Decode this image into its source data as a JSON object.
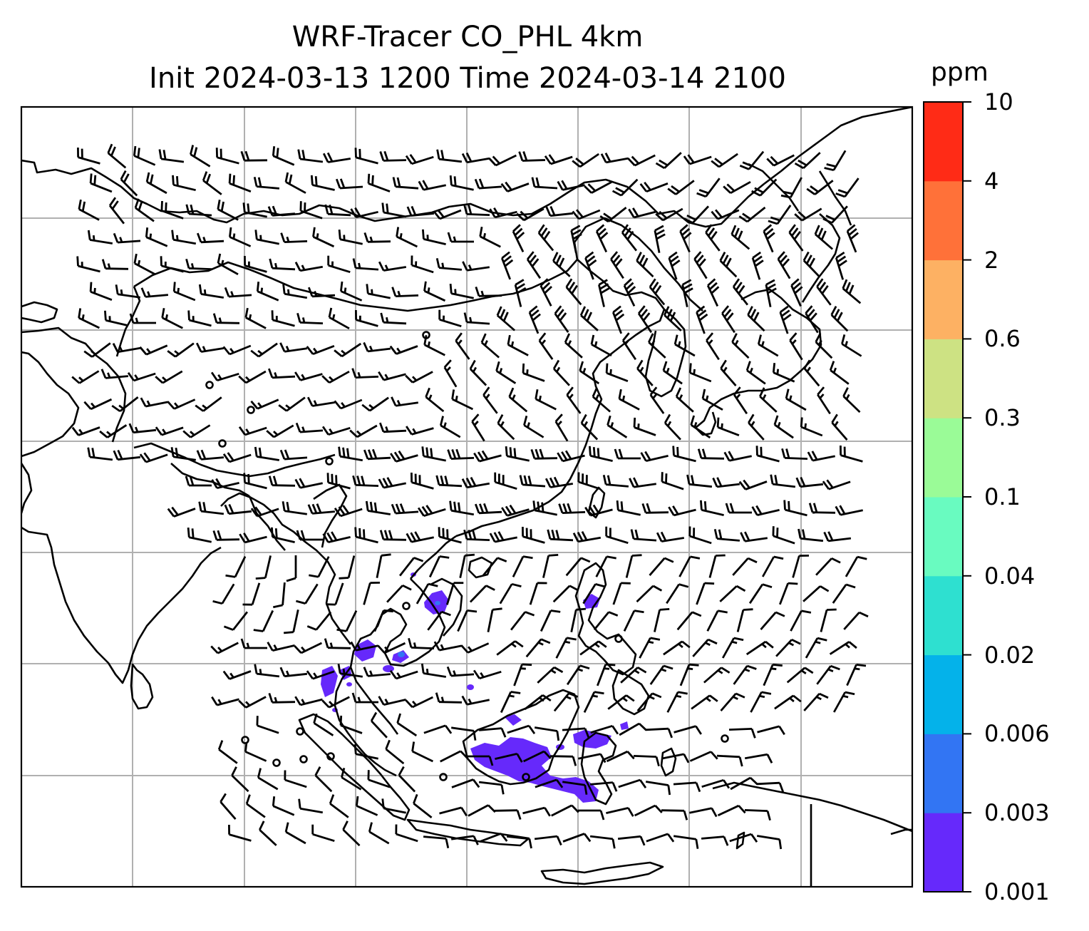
{
  "figure": {
    "title_line1": "WRF-Tracer CO_PHL 4km",
    "title_line2": "Init 2024-03-13 1200 Time 2024-03-14 2100"
  },
  "colorbar": {
    "unit": "ppm",
    "levels": [
      "0.001",
      "0.003",
      "0.006",
      "0.02",
      "0.04",
      "0.1",
      "0.3",
      "0.6",
      "2",
      "4",
      "10"
    ],
    "colors": [
      "#6629fb",
      "#3275f3",
      "#04b2ea",
      "#2ee0d0",
      "#69fbc0",
      "#9afb97",
      "#cde283",
      "#fdb163",
      "#ff7139",
      "#ff2b16"
    ]
  },
  "map": {
    "region": "East and Southeast Asia",
    "layers": [
      "coastlines",
      "country-borders",
      "gridlines",
      "wind-barbs",
      "tracer-concentration-fill"
    ],
    "barb_color": "#000000",
    "plume_color": "#6629fb"
  }
}
